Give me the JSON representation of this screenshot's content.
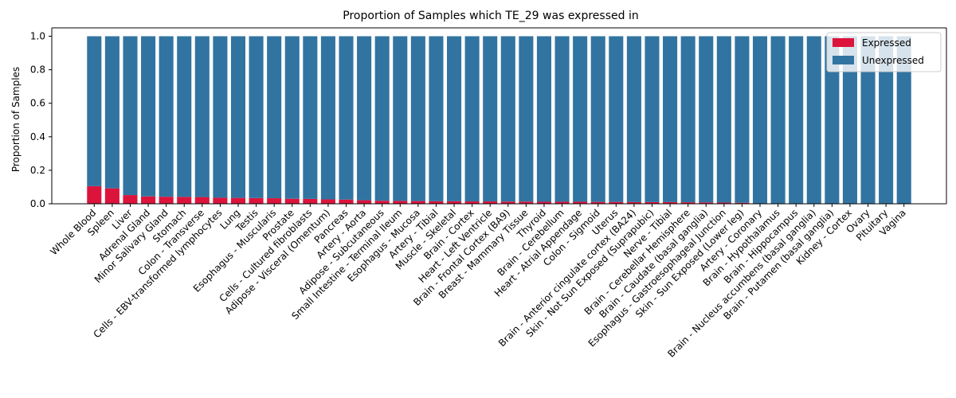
{
  "chart_data": {
    "type": "bar",
    "stacked": true,
    "title": "Proportion of Samples which TE_29 was expressed in",
    "xlabel": "",
    "ylabel": "Proportion of Samples",
    "ylim": [
      0,
      1.05
    ],
    "yticks": [
      "0.0",
      "0.2",
      "0.4",
      "0.6",
      "0.8",
      "1.0"
    ],
    "grid": false,
    "legend": "top-right",
    "categories": [
      "Whole Blood",
      "Spleen",
      "Liver",
      "Adrenal Gland",
      "Minor Salivary Gland",
      "Stomach",
      "Colon - Transverse",
      "Cells - EBV-transformed lymphocytes",
      "Lung",
      "Testis",
      "Esophagus - Muscularis",
      "Prostate",
      "Cells - Cultured fibroblasts",
      "Adipose - Visceral (Omentum)",
      "Pancreas",
      "Artery - Aorta",
      "Adipose - Subcutaneous",
      "Small Intestine - Terminal Ileum",
      "Esophagus - Mucosa",
      "Artery - Tibial",
      "Muscle - Skeletal",
      "Brain - Cortex",
      "Heart - Left Ventricle",
      "Brain - Frontal Cortex (BA9)",
      "Breast - Mammary Tissue",
      "Thyroid",
      "Brain - Cerebellum",
      "Heart - Atrial Appendage",
      "Colon - Sigmoid",
      "Uterus",
      "Brain - Anterior cingulate cortex (BA24)",
      "Skin - Not Sun Exposed (Suprapubic)",
      "Nerve - Tibial",
      "Brain - Cerebellar Hemisphere",
      "Brain - Caudate (basal ganglia)",
      "Esophagus - Gastroesophageal Junction",
      "Skin - Sun Exposed (Lower leg)",
      "Artery - Coronary",
      "Brain - Hypothalamus",
      "Brain - Hippocampus",
      "Brain - Nucleus accumbens (basal ganglia)",
      "Brain - Putamen (basal ganglia)",
      "Kidney - Cortex",
      "Ovary",
      "Pituitary",
      "Vagina"
    ],
    "series": [
      {
        "name": "Expressed",
        "color": "#dc143c",
        "values": [
          0.105,
          0.092,
          0.052,
          0.044,
          0.042,
          0.041,
          0.04,
          0.036,
          0.035,
          0.034,
          0.033,
          0.03,
          0.029,
          0.026,
          0.025,
          0.021,
          0.018,
          0.017,
          0.016,
          0.015,
          0.015,
          0.014,
          0.014,
          0.013,
          0.013,
          0.012,
          0.012,
          0.012,
          0.011,
          0.011,
          0.01,
          0.01,
          0.01,
          0.009,
          0.008,
          0.007,
          0.006,
          0.0,
          0.0,
          0.0,
          0.0,
          0.0,
          0.0,
          0.0,
          0.0,
          0.0
        ]
      },
      {
        "name": "Unexpressed",
        "color": "#3274a1",
        "values": [
          0.895,
          0.908,
          0.948,
          0.956,
          0.958,
          0.959,
          0.96,
          0.964,
          0.965,
          0.966,
          0.967,
          0.97,
          0.971,
          0.974,
          0.975,
          0.979,
          0.982,
          0.983,
          0.984,
          0.985,
          0.985,
          0.986,
          0.986,
          0.987,
          0.987,
          0.988,
          0.988,
          0.988,
          0.989,
          0.989,
          0.99,
          0.99,
          0.99,
          0.991,
          0.992,
          0.993,
          0.994,
          1.0,
          1.0,
          1.0,
          1.0,
          1.0,
          1.0,
          1.0,
          1.0,
          1.0
        ]
      }
    ]
  }
}
